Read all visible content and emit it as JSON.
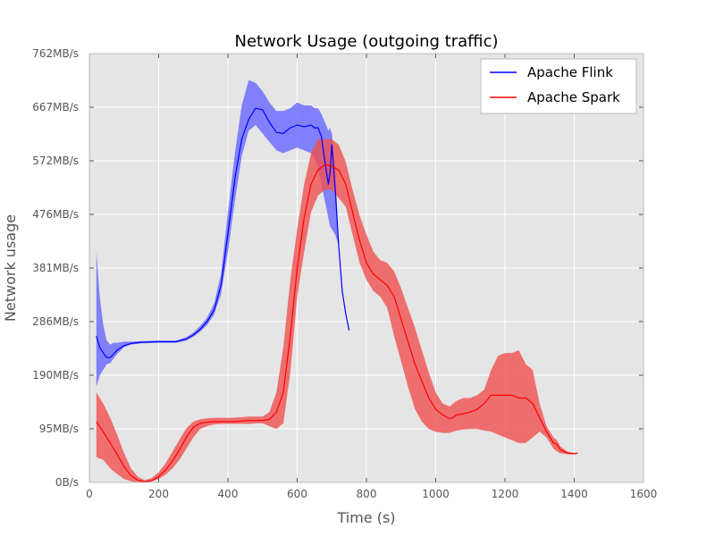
{
  "chart_data": {
    "type": "line",
    "title": "Network Usage (outgoing traffic)",
    "xlabel": "Time (s)",
    "ylabel": "Network usage",
    "xlim": [
      0,
      1600
    ],
    "ylim": [
      0,
      762
    ],
    "xticks": [
      0,
      200,
      400,
      600,
      800,
      1000,
      1200,
      1400,
      1600
    ],
    "yticks": [
      {
        "value": 0,
        "label": "0B/s"
      },
      {
        "value": 95.25,
        "label": "95MB/s"
      },
      {
        "value": 190.5,
        "label": "190MB/s"
      },
      {
        "value": 285.75,
        "label": "286MB/s"
      },
      {
        "value": 381,
        "label": "381MB/s"
      },
      {
        "value": 476.25,
        "label": "476MB/s"
      },
      {
        "value": 571.5,
        "label": "572MB/s"
      },
      {
        "value": 666.75,
        "label": "667MB/s"
      },
      {
        "value": 762,
        "label": "762MB/s"
      }
    ],
    "grid": true,
    "legend_position": "top-right",
    "series": [
      {
        "name": "Apache Flink",
        "color": "#0000ff",
        "band_color": "#6666ff",
        "x": [
          20,
          30,
          40,
          50,
          60,
          70,
          80,
          100,
          120,
          150,
          200,
          250,
          280,
          300,
          320,
          340,
          360,
          380,
          400,
          420,
          440,
          460,
          480,
          500,
          520,
          540,
          560,
          580,
          600,
          620,
          640,
          650,
          660,
          670,
          680,
          690,
          695,
          700,
          710,
          720,
          730,
          740,
          750
        ],
        "y": [
          260,
          240,
          230,
          222,
          222,
          228,
          235,
          243,
          247,
          249,
          250,
          250,
          255,
          262,
          272,
          286,
          306,
          350,
          442,
          540,
          610,
          645,
          665,
          662,
          640,
          622,
          620,
          630,
          635,
          632,
          635,
          630,
          630,
          615,
          570,
          530,
          550,
          600,
          520,
          420,
          340,
          300,
          270
        ],
        "lower": [
          170,
          190,
          200,
          210,
          212,
          220,
          228,
          240,
          245,
          247,
          248,
          248,
          252,
          259,
          268,
          280,
          298,
          335,
          410,
          500,
          580,
          625,
          635,
          620,
          605,
          590,
          585,
          590,
          595,
          590,
          585,
          575,
          560,
          530,
          500,
          470,
          455,
          450,
          440,
          420,
          340,
          300,
          270
        ],
        "upper": [
          410,
          330,
          280,
          252,
          245,
          248,
          248,
          250,
          250,
          251,
          252,
          252,
          258,
          266,
          278,
          293,
          318,
          370,
          480,
          585,
          670,
          715,
          710,
          695,
          675,
          660,
          660,
          665,
          675,
          670,
          670,
          665,
          665,
          655,
          640,
          625,
          630,
          620,
          560,
          420,
          340,
          300,
          270
        ]
      },
      {
        "name": "Apache Spark",
        "color": "#ff0000",
        "band_color": "#f05050",
        "x": [
          20,
          40,
          60,
          80,
          100,
          120,
          140,
          160,
          180,
          200,
          220,
          240,
          260,
          280,
          300,
          320,
          340,
          360,
          380,
          400,
          420,
          440,
          460,
          480,
          500,
          520,
          540,
          560,
          580,
          600,
          620,
          640,
          660,
          680,
          700,
          720,
          740,
          760,
          780,
          800,
          820,
          840,
          860,
          880,
          900,
          920,
          940,
          960,
          980,
          1000,
          1020,
          1040,
          1050,
          1060,
          1080,
          1100,
          1120,
          1140,
          1160,
          1180,
          1200,
          1220,
          1240,
          1260,
          1280,
          1300,
          1320,
          1340,
          1350,
          1360,
          1380,
          1400,
          1410
        ],
        "y": [
          108,
          90,
          70,
          50,
          28,
          12,
          4,
          1,
          3,
          10,
          22,
          38,
          58,
          80,
          98,
          105,
          107,
          108,
          108,
          108,
          108,
          109,
          110,
          110,
          110,
          112,
          125,
          160,
          260,
          380,
          470,
          530,
          555,
          565,
          562,
          555,
          530,
          480,
          430,
          390,
          370,
          360,
          350,
          330,
          290,
          250,
          210,
          180,
          150,
          130,
          120,
          113,
          115,
          120,
          122,
          125,
          130,
          140,
          155,
          155,
          155,
          155,
          150,
          150,
          140,
          115,
          90,
          70,
          68,
          58,
          52,
          51,
          52
        ],
        "lower": [
          45,
          40,
          25,
          15,
          6,
          2,
          0,
          0,
          2,
          6,
          14,
          25,
          40,
          60,
          80,
          95,
          100,
          103,
          104,
          104,
          104,
          104,
          104,
          105,
          105,
          100,
          95,
          105,
          195,
          330,
          410,
          480,
          510,
          520,
          520,
          505,
          490,
          440,
          390,
          360,
          340,
          330,
          310,
          260,
          215,
          170,
          130,
          108,
          95,
          90,
          88,
          88,
          90,
          92,
          94,
          95,
          95,
          92,
          90,
          85,
          80,
          75,
          70,
          70,
          80,
          90,
          80,
          60,
          55,
          52,
          50,
          50,
          51
        ],
        "upper": [
          160,
          140,
          115,
          85,
          52,
          25,
          10,
          4,
          8,
          18,
          34,
          55,
          76,
          96,
          108,
          112,
          114,
          115,
          115,
          115,
          115,
          116,
          117,
          117,
          117,
          125,
          160,
          240,
          360,
          450,
          530,
          585,
          610,
          610,
          610,
          600,
          570,
          520,
          475,
          440,
          410,
          395,
          390,
          375,
          345,
          310,
          275,
          235,
          195,
          160,
          140,
          135,
          140,
          145,
          150,
          150,
          155,
          165,
          200,
          225,
          230,
          230,
          235,
          210,
          200,
          140,
          100,
          80,
          75,
          64,
          55,
          52,
          53
        ]
      }
    ]
  }
}
